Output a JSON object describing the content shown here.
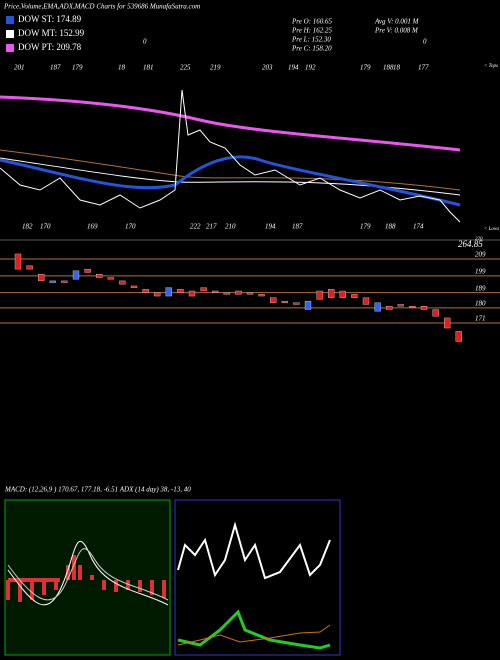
{
  "header": {
    "title": "Price,Volume,EMA,ADX,MACD Charts for 539686  MunafaSutra.com"
  },
  "legend": [
    {
      "name": "DOW ST: 174.89",
      "color": "#2255dd"
    },
    {
      "name": "DOW MT: 152.99",
      "color": "#ffffff"
    },
    {
      "name": "DOW PT: 209.78",
      "color": "#ee55ee"
    }
  ],
  "stats": [
    "Pre  O: 160.65",
    "Pre  H: 162.25",
    "Pre  L: 152.30",
    "Pre  C: 158.20"
  ],
  "volume": [
    "Avg V: 0.001 M",
    "Pre  V: 0.008 M"
  ],
  "zeros": [
    "0",
    "0"
  ],
  "tops": [
    "201",
    "187",
    "179",
    "18",
    "181",
    "225",
    "219",
    "203",
    "194",
    "192",
    "179",
    "188",
    "18",
    "177"
  ],
  "tops_label": "< Tops",
  "lows": [
    "182",
    "170",
    "169",
    "170",
    "222",
    "217",
    "210",
    "194",
    "187",
    "179",
    "188",
    "174"
  ],
  "lows_label": "< Lows",
  "top_level": "264.85",
  "top_level_small": "220",
  "levels": [
    209,
    199,
    189,
    180,
    171
  ],
  "candles": [
    {
      "open": 212,
      "close": 203
    },
    {
      "open": 205,
      "close": 203
    },
    {
      "open": 200,
      "close": 196
    },
    {
      "open": 195,
      "close": 196
    },
    {
      "open": 196,
      "close": 195
    },
    {
      "open": 197,
      "close": 202
    },
    {
      "open": 203,
      "close": 201
    },
    {
      "open": 200,
      "close": 198
    },
    {
      "open": 198,
      "close": 197
    },
    {
      "open": 196,
      "close": 194
    },
    {
      "open": 193,
      "close": 192
    },
    {
      "open": 191,
      "close": 189
    },
    {
      "open": 189,
      "close": 187
    },
    {
      "open": 187,
      "close": 192
    },
    {
      "open": 191,
      "close": 189
    },
    {
      "open": 190,
      "close": 187
    },
    {
      "open": 192,
      "close": 190
    },
    {
      "open": 190,
      "close": 189
    },
    {
      "open": 189,
      "close": 188
    },
    {
      "open": 190,
      "close": 188
    },
    {
      "open": 189,
      "close": 188
    },
    {
      "open": 188,
      "close": 187
    },
    {
      "open": 186,
      "close": 183
    },
    {
      "open": 184,
      "close": 183
    },
    {
      "open": 183,
      "close": 182
    },
    {
      "open": 179,
      "close": 184
    },
    {
      "open": 190,
      "close": 185
    },
    {
      "open": 191,
      "close": 186
    },
    {
      "open": 190,
      "close": 186
    },
    {
      "open": 188,
      "close": 186
    },
    {
      "open": 186,
      "close": 182
    },
    {
      "open": 178,
      "close": 183
    },
    {
      "open": 181,
      "close": 179
    },
    {
      "open": 182,
      "close": 181
    },
    {
      "open": 181,
      "close": 180
    },
    {
      "open": 181,
      "close": 179
    },
    {
      "open": 179,
      "close": 175
    },
    {
      "open": 174,
      "close": 168
    },
    {
      "open": 166,
      "close": 160
    }
  ],
  "macd_label": "MACD: (12,26,9 ) 170.67, 177.18, -6.51 ADX   (14 day) 38, -13, 40"
}
